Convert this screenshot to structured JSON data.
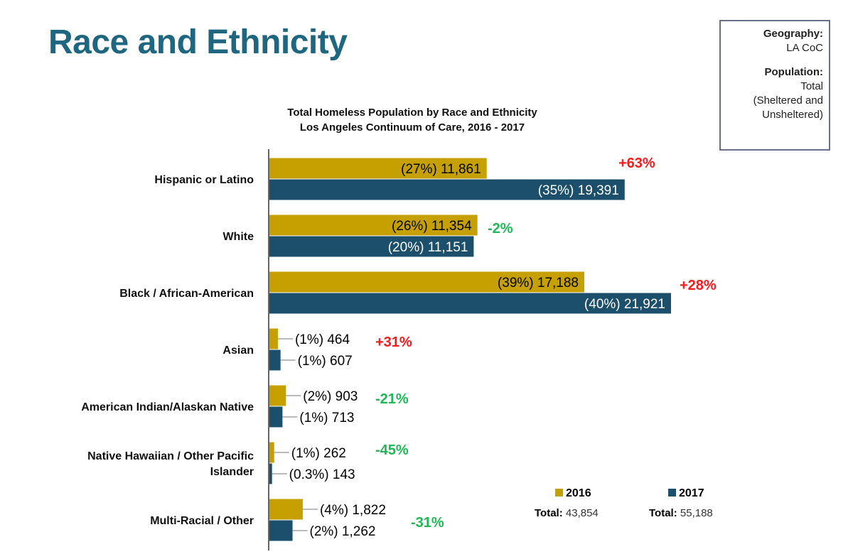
{
  "page": {
    "title": "Race and Ethnicity"
  },
  "info_box": {
    "geography_label": "Geography:",
    "geography_value": "LA CoC",
    "population_label": "Population:",
    "population_line1": "Total",
    "population_line2": "(Sheltered and",
    "population_line3": "Unsheltered)"
  },
  "chart_data": {
    "type": "bar",
    "orientation": "horizontal",
    "title_line1": "Total Homeless Population by Race and Ethnicity",
    "title_line2": "Los Angeles Continuum of Care, 2016 - 2017",
    "categories": [
      [
        "Hispanic or Latino"
      ],
      [
        "White"
      ],
      [
        "Black / African-American"
      ],
      [
        "Asian"
      ],
      [
        "American Indian/Alaskan Native"
      ],
      [
        "Native Hawaiian / Other Pacific",
        "Islander"
      ],
      [
        "Multi-Racial / Other"
      ]
    ],
    "series": [
      {
        "name": "2016",
        "color": "#c5a000",
        "values": [
          11861,
          11354,
          17188,
          464,
          903,
          262,
          1822
        ],
        "labels": [
          "(27%)  11,861",
          "(26%)  11,354",
          "(39%)  17,188",
          "(1%)  464",
          "(2%)  903",
          "(1%)  262",
          "(4%)  1,822"
        ]
      },
      {
        "name": "2017",
        "color": "#1b4f6b",
        "values": [
          19391,
          11151,
          21921,
          607,
          713,
          143,
          1262
        ],
        "labels": [
          "(35%)  19,391",
          "(20%)  11,151",
          "(40%)  21,921",
          "(1%)  607",
          "(1%)  713",
          "(0.3%)  143",
          "(2%)  1,262"
        ]
      }
    ],
    "changes": [
      "+63%",
      "-2%",
      "+28%",
      "+31%",
      "-21%",
      "-45%",
      "-31%"
    ],
    "change_colors": {
      "increase": "#ff1a1a",
      "decrease": "#1db954"
    },
    "xlim": [
      0,
      22000
    ],
    "grid": false,
    "legend_position": "bottom-right"
  },
  "legend": {
    "total_label": "Total:",
    "total_2016": "43,854",
    "total_2017": "55,188"
  }
}
